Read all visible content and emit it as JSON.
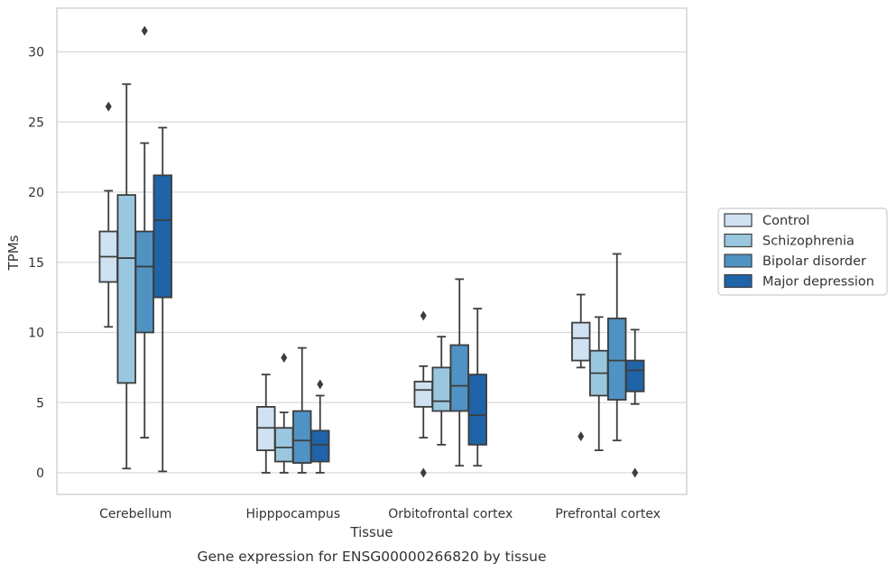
{
  "chart_data": {
    "type": "boxplot",
    "title": "",
    "caption": "Gene expression for ENSG00000266820 by tissue",
    "xlabel": "Tissue",
    "ylabel": "TPMs",
    "ylim": [
      -1.5,
      33
    ],
    "yticks": [
      0,
      5,
      10,
      15,
      20,
      25,
      30
    ],
    "grid": "horizontal",
    "legend_position": "right",
    "categories": [
      "Cerebellum",
      "Hipppocampus",
      "Orbitofrontal cortex",
      "Prefrontal cortex"
    ],
    "series": [
      {
        "name": "Control",
        "color": "#d0e1f2",
        "boxes": [
          {
            "whislo": 10.4,
            "q1": 13.6,
            "med": 15.4,
            "q3": 17.2,
            "whishi": 20.1,
            "fliers": [
              26.1
            ]
          },
          {
            "whislo": 0.0,
            "q1": 1.6,
            "med": 3.2,
            "q3": 4.7,
            "whishi": 7.0,
            "fliers": []
          },
          {
            "whislo": 2.5,
            "q1": 4.7,
            "med": 5.9,
            "q3": 6.5,
            "whishi": 7.6,
            "fliers": [
              11.2,
              0.0
            ]
          },
          {
            "whislo": 7.5,
            "q1": 8.0,
            "med": 9.6,
            "q3": 10.7,
            "whishi": 12.7,
            "fliers": [
              2.6
            ]
          }
        ]
      },
      {
        "name": "Schizophrenia",
        "color": "#9ac7e0",
        "boxes": [
          {
            "whislo": 0.3,
            "q1": 6.4,
            "med": 15.3,
            "q3": 19.8,
            "whishi": 27.7,
            "fliers": []
          },
          {
            "whislo": 0.0,
            "q1": 0.8,
            "med": 1.8,
            "q3": 3.2,
            "whishi": 4.3,
            "fliers": [
              8.2
            ]
          },
          {
            "whislo": 2.0,
            "q1": 4.4,
            "med": 5.1,
            "q3": 7.5,
            "whishi": 9.7,
            "fliers": []
          },
          {
            "whislo": 1.6,
            "q1": 5.5,
            "med": 7.1,
            "q3": 8.7,
            "whishi": 11.1,
            "fliers": []
          }
        ]
      },
      {
        "name": "Bipolar disorder",
        "color": "#4f92c3",
        "boxes": [
          {
            "whislo": 2.5,
            "q1": 10.0,
            "med": 14.7,
            "q3": 17.2,
            "whishi": 23.5,
            "fliers": [
              31.5
            ]
          },
          {
            "whislo": 0.0,
            "q1": 0.7,
            "med": 2.3,
            "q3": 4.4,
            "whishi": 8.9,
            "fliers": []
          },
          {
            "whislo": 0.5,
            "q1": 4.4,
            "med": 6.2,
            "q3": 9.1,
            "whishi": 13.8,
            "fliers": []
          },
          {
            "whislo": 2.3,
            "q1": 5.2,
            "med": 8.0,
            "q3": 11.0,
            "whishi": 15.6,
            "fliers": []
          }
        ]
      },
      {
        "name": "Major depression",
        "color": "#1f63a8",
        "boxes": [
          {
            "whislo": 0.1,
            "q1": 12.5,
            "med": 18.0,
            "q3": 21.2,
            "whishi": 24.6,
            "fliers": []
          },
          {
            "whislo": 0.0,
            "q1": 0.8,
            "med": 2.0,
            "q3": 3.0,
            "whishi": 5.5,
            "fliers": [
              6.3
            ]
          },
          {
            "whislo": 0.5,
            "q1": 2.0,
            "med": 4.1,
            "q3": 7.0,
            "whishi": 11.7,
            "fliers": []
          },
          {
            "whislo": 4.9,
            "q1": 5.8,
            "med": 7.3,
            "q3": 8.0,
            "whishi": 10.2,
            "fliers": [
              0.0
            ]
          }
        ]
      }
    ]
  }
}
